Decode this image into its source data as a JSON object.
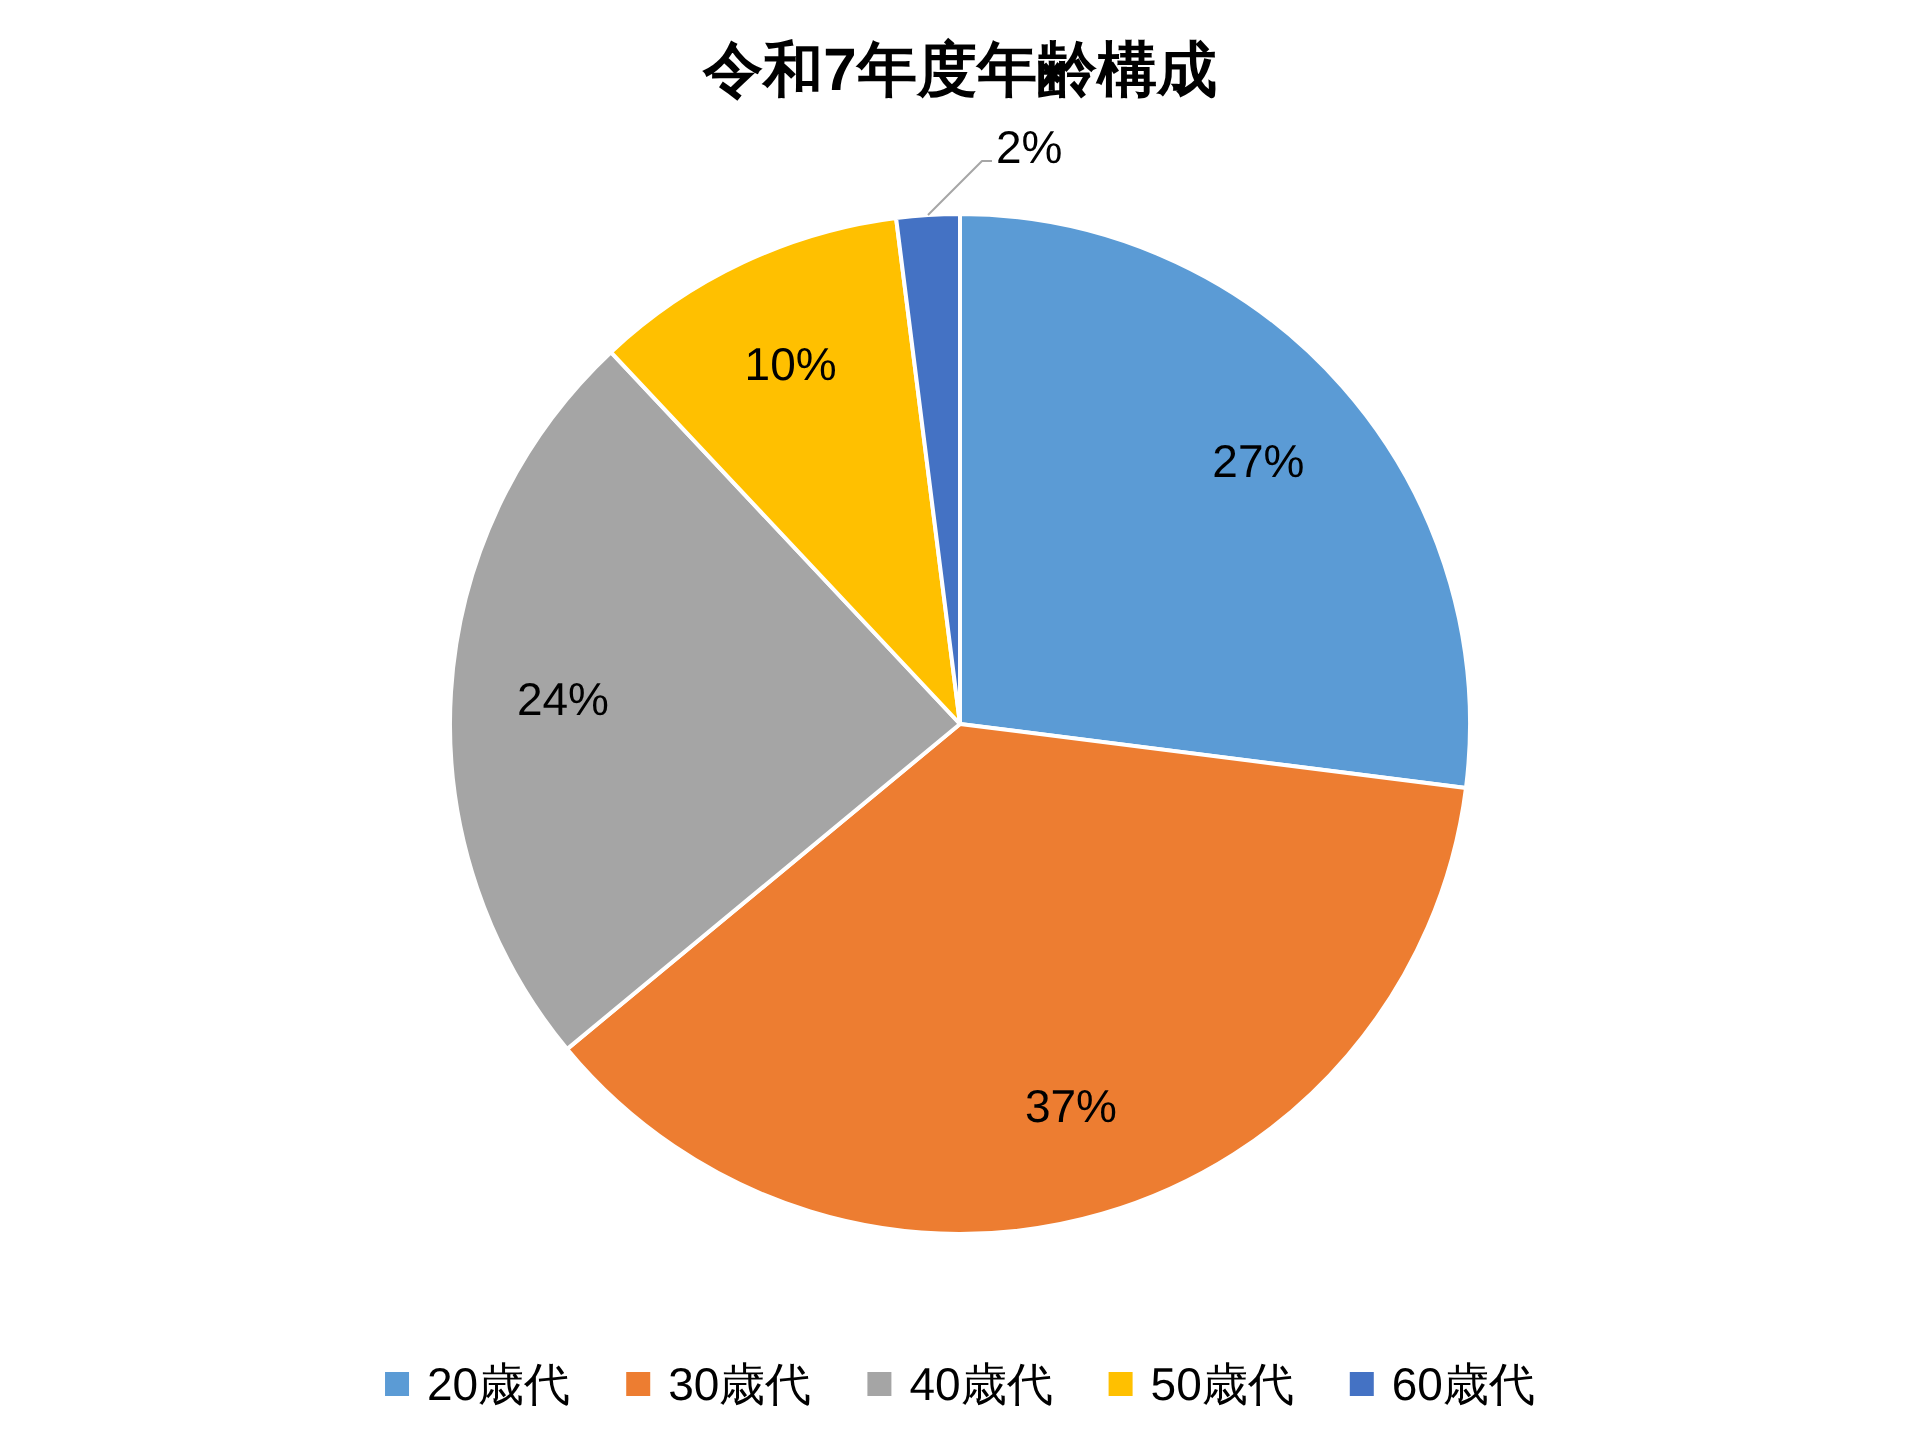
{
  "chart_data": {
    "type": "pie",
    "title": "令和7年度年齢構成",
    "categories": [
      "20歳代",
      "30歳代",
      "40歳代",
      "50歳代",
      "60歳代"
    ],
    "values": [
      27,
      37,
      24,
      10,
      2
    ],
    "colors": [
      "#5b9bd5",
      "#ed7d31",
      "#a5a5a5",
      "#ffc000",
      "#4472c4"
    ],
    "value_labels": [
      "27%",
      "37%",
      "24%",
      "10%",
      "2%"
    ],
    "legend": "bottom"
  }
}
